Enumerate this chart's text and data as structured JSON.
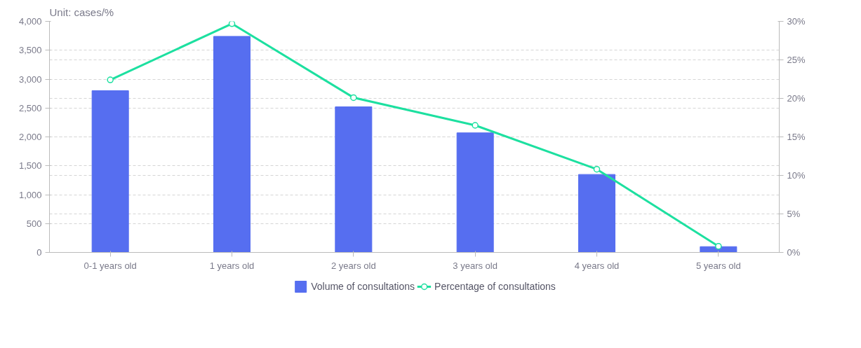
{
  "chart_data": {
    "type": "bar",
    "title": "Unit: cases/%",
    "categories": [
      "0-1 years old",
      "1 years old",
      "2 years old",
      "3 years old",
      "4 years old",
      "5 years old"
    ],
    "series": [
      {
        "name": "Volume of consultations",
        "color": "#566ef0",
        "values": [
          2800,
          3740,
          2520,
          2070,
          1350,
          100
        ]
      },
      {
        "name": "Percentage of consultations",
        "type": "line",
        "axis": "y2",
        "color": "#1de0a0",
        "marker": "circle",
        "values": [
          22.4,
          29.7,
          20.1,
          16.5,
          10.8,
          0.8
        ]
      }
    ],
    "ylim": [
      0,
      4000
    ],
    "yticks": [
      0,
      500,
      {
        "value": 1000,
        "label": "1,000"
      },
      {
        "value": 1500,
        "label": "1,500"
      },
      {
        "value": 2000,
        "label": "2,000"
      },
      {
        "value": 2500,
        "label": "2,500"
      },
      {
        "value": 3000,
        "label": "3,000"
      },
      {
        "value": 3500,
        "label": "3,500"
      },
      {
        "value": 4000,
        "label": "4,000"
      }
    ],
    "y2lim": [
      0,
      30
    ],
    "y2ticks": [
      {
        "value": 0,
        "label": "0%"
      },
      {
        "value": 5,
        "label": "5%"
      },
      {
        "value": 10,
        "label": "10%"
      },
      {
        "value": 15,
        "label": "15%"
      },
      {
        "value": 20,
        "label": "20%"
      },
      {
        "value": 25,
        "label": "25%"
      },
      {
        "value": 30,
        "label": "30%"
      }
    ],
    "grid": "y",
    "legend": "bottom"
  }
}
